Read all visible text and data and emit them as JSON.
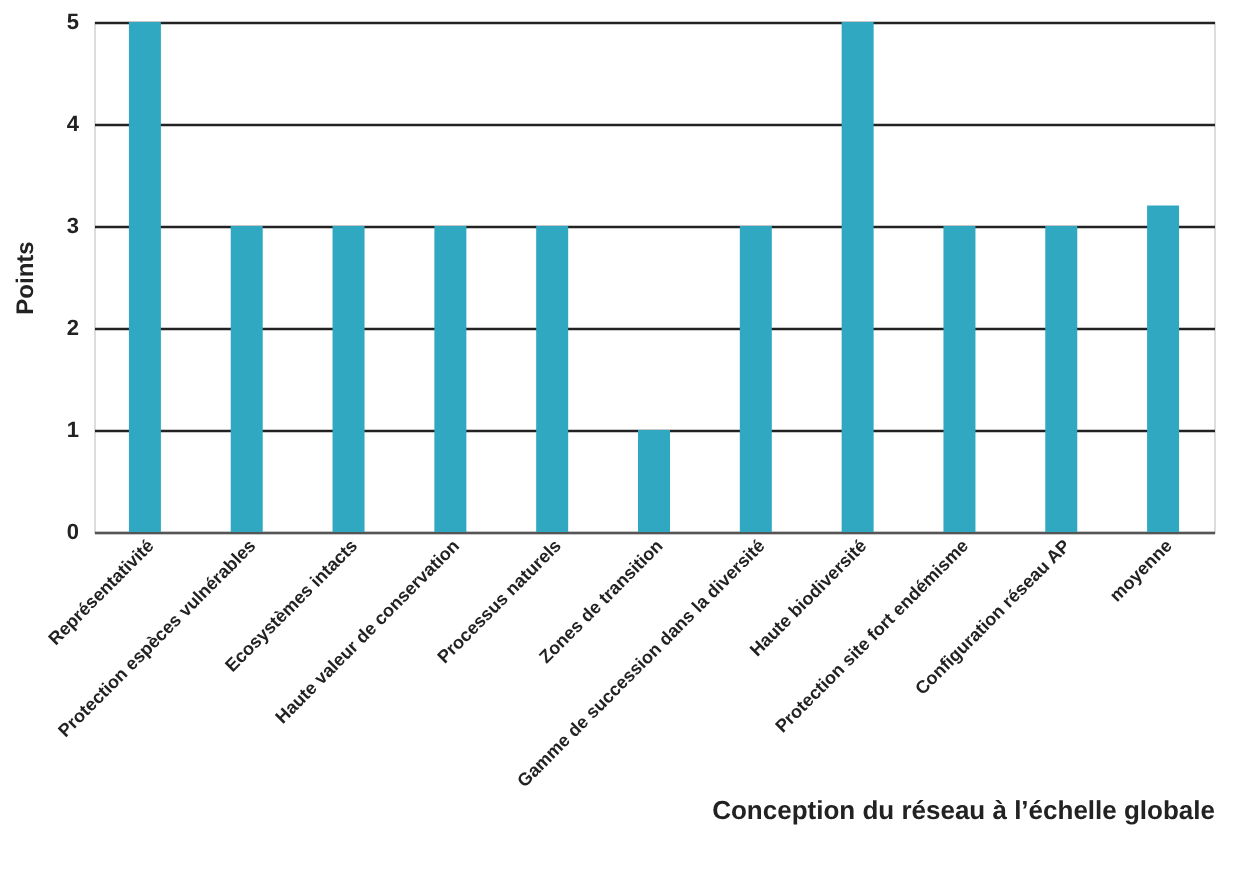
{
  "chart_data": {
    "type": "bar",
    "categories": [
      "Représentativité",
      "Protection espèces vulnérables",
      "Ecosystèmes intacts",
      "Haute valeur de conservation",
      "Processus naturels",
      "Zones de transition",
      "Gamme de succession dans la diversité",
      "Haute biodiversité",
      "Protection site fort endémisme",
      "Configuration réseau AP",
      "moyenne"
    ],
    "values": [
      5,
      3,
      3,
      3,
      3,
      1,
      3,
      5,
      3,
      3,
      3.2
    ],
    "color": "#31a8c1",
    "xlabel": "Conception du réseau à l’échelle globale",
    "ylabel": "Points",
    "ylim": [
      0,
      5
    ],
    "yticks": [
      0,
      1,
      2,
      3,
      4,
      5
    ],
    "grid": "y"
  }
}
